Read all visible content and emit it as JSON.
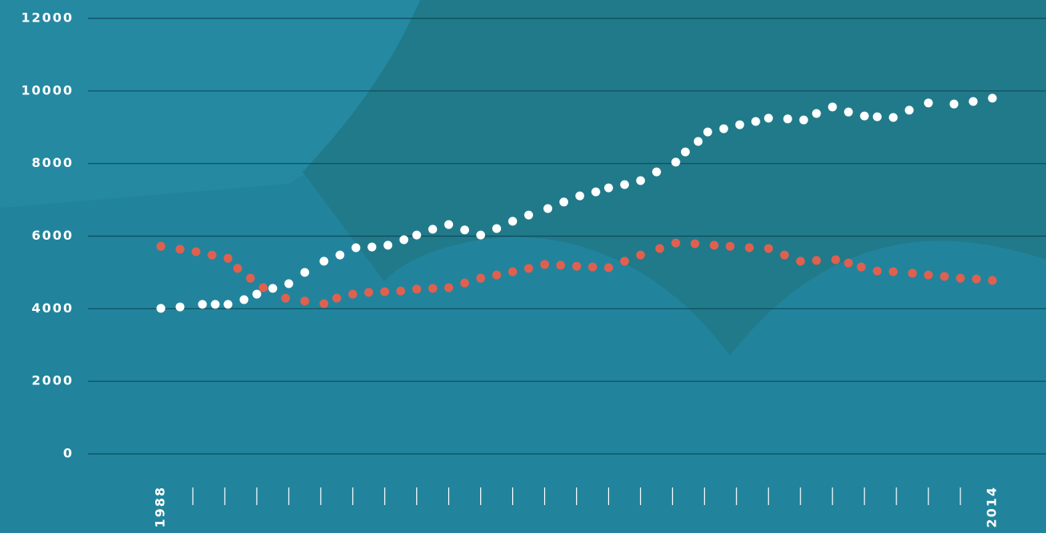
{
  "chart_data": {
    "type": "scatter",
    "xlim": [
      1988,
      2014
    ],
    "xticks": [
      1988,
      2014
    ],
    "minor_xticks": [
      1989,
      1990,
      1991,
      1992,
      1993,
      1994,
      1995,
      1996,
      1997,
      1998,
      1999,
      2000,
      2001,
      2002,
      2003,
      2004,
      2005,
      2006,
      2007,
      2008,
      2009,
      2010,
      2011,
      2012,
      2013
    ],
    "ylim": [
      0,
      12000
    ],
    "yticks": [
      0,
      2000,
      4000,
      6000,
      8000,
      10000,
      12000
    ],
    "grid": true,
    "series": [
      {
        "color": "#ffffff",
        "x": [
          1988.0,
          1988.6,
          1989.3,
          1989.7,
          1990.1,
          1990.6,
          1991.0,
          1991.5,
          1992.0,
          1992.5,
          1993.1,
          1993.6,
          1994.1,
          1994.6,
          1995.1,
          1995.6,
          1996.0,
          1996.5,
          1997.0,
          1997.5,
          1998.0,
          1998.5,
          1999.0,
          1999.5,
          2000.1,
          2000.6,
          2001.1,
          2001.6,
          2002.0,
          2002.5,
          2003.0,
          2003.5,
          2004.1,
          2004.4,
          2004.8,
          2005.1,
          2005.6,
          2006.1,
          2006.6,
          2007.0,
          2007.6,
          2008.1,
          2008.5,
          2009.0,
          2009.5,
          2010.0,
          2010.4,
          2010.9,
          2011.4,
          2012.0,
          2012.8,
          2013.4,
          2014.0
        ],
        "values": [
          4010,
          4050,
          4120,
          4120,
          4120,
          4250,
          4400,
          4560,
          4690,
          5000,
          5310,
          5480,
          5680,
          5700,
          5750,
          5900,
          6030,
          6190,
          6320,
          6170,
          6030,
          6210,
          6410,
          6580,
          6760,
          6940,
          7110,
          7220,
          7330,
          7420,
          7530,
          7770,
          8040,
          8320,
          8610,
          8870,
          8960,
          9070,
          9160,
          9250,
          9230,
          9200,
          9380,
          9560,
          9420,
          9310,
          9290,
          9270,
          9470,
          9670,
          9640,
          9710,
          9800
        ]
      },
      {
        "color": "#e0604f",
        "x": [
          1988.0,
          1988.6,
          1989.1,
          1989.6,
          1990.1,
          1990.4,
          1990.8,
          1991.2,
          1991.9,
          1992.5,
          1993.1,
          1993.5,
          1994.0,
          1994.5,
          1995.0,
          1995.5,
          1996.0,
          1996.5,
          1997.0,
          1997.5,
          1998.0,
          1998.5,
          1999.0,
          1999.5,
          2000.0,
          2000.5,
          2001.0,
          2001.5,
          2002.0,
          2002.5,
          2003.0,
          2003.6,
          2004.1,
          2004.7,
          2005.3,
          2005.8,
          2006.4,
          2007.0,
          2007.5,
          2008.0,
          2008.5,
          2009.1,
          2009.5,
          2009.9,
          2010.4,
          2010.9,
          2011.5,
          2012.0,
          2012.5,
          2013.0,
          2013.5,
          2014.0
        ],
        "values": [
          5720,
          5640,
          5570,
          5480,
          5390,
          5110,
          4840,
          4580,
          4290,
          4210,
          4140,
          4290,
          4400,
          4450,
          4470,
          4490,
          4540,
          4560,
          4580,
          4710,
          4840,
          4930,
          5020,
          5110,
          5220,
          5200,
          5170,
          5150,
          5130,
          5310,
          5480,
          5660,
          5810,
          5790,
          5750,
          5720,
          5680,
          5660,
          5480,
          5310,
          5330,
          5350,
          5260,
          5150,
          5040,
          5020,
          4980,
          4930,
          4890,
          4840,
          4820,
          4780
        ]
      }
    ]
  }
}
